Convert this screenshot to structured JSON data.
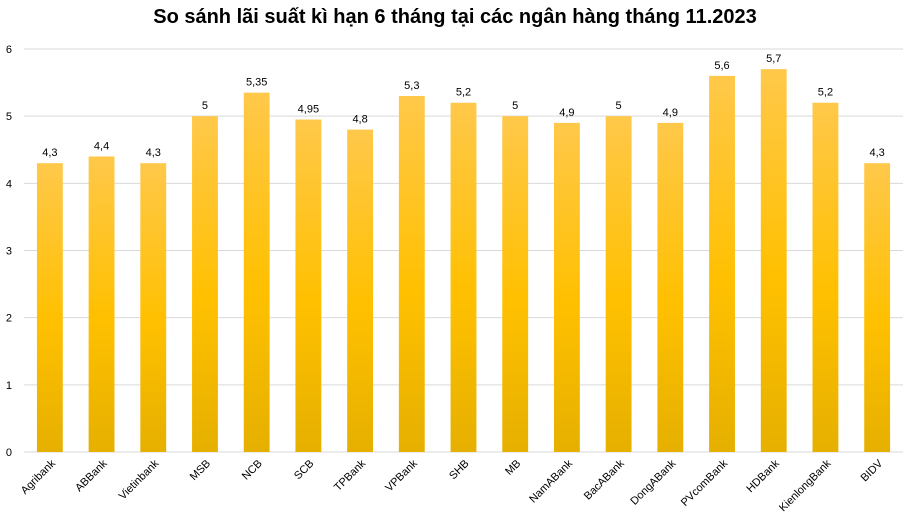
{
  "chart_data": {
    "type": "bar",
    "title": "So sánh lãi suất kì hạn 6 tháng tại các ngân hàng tháng 11.2023",
    "xlabel": "",
    "ylabel": "",
    "categories": [
      "Agribank",
      "ABBank",
      "Vietinbank",
      "MSB",
      "NCB",
      "SCB",
      "TPBank",
      "VPBank",
      "SHB",
      "MB",
      "NamABank",
      "BacABank",
      "DongABank",
      "PVcomBank",
      "HDBank",
      "KienlongBank",
      "BIDV"
    ],
    "values": [
      4.3,
      4.4,
      4.3,
      5,
      5.35,
      4.95,
      4.8,
      5.3,
      5.2,
      5,
      4.9,
      5,
      4.9,
      5.6,
      5.7,
      5.2,
      4.3
    ],
    "value_labels": [
      "4,3",
      "4,4",
      "4,3",
      "5",
      "5,35",
      "4,95",
      "4,8",
      "5,3",
      "5,2",
      "5",
      "4,9",
      "5",
      "4,9",
      "5,6",
      "5,7",
      "5,2",
      "4,3"
    ],
    "y_ticks": [
      0,
      1,
      2,
      3,
      4,
      5,
      6
    ],
    "ylim": [
      0,
      6
    ],
    "grid": true,
    "legend": "none",
    "colors": {
      "bar_top": "#FFC84A",
      "bar_mid": "#FFC000",
      "bar_bottom": "#E6B000",
      "grid": "#D9D9D9"
    }
  }
}
